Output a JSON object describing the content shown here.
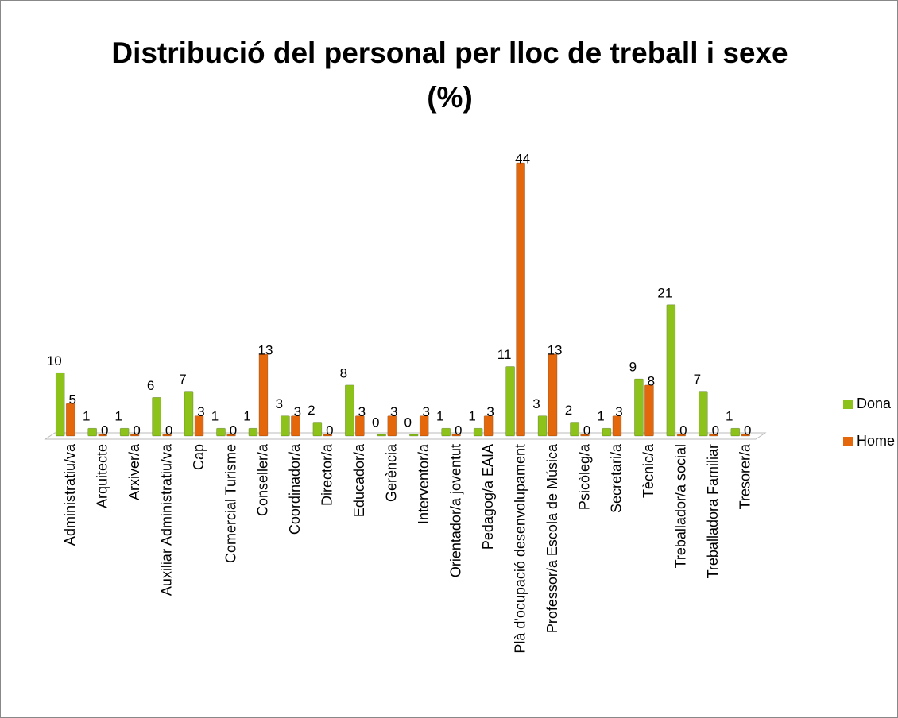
{
  "chart_data": {
    "type": "bar",
    "title": "Distribució del personal per lloc de treball i sexe (%)",
    "categories": [
      "Administratiu/va",
      "Arquitecte",
      "Arxiver/a",
      "Auxiliar Administratiu/va",
      "Cap",
      "Comercial Turisme",
      "Conseller/a",
      "Coordinador/a",
      "Director/a",
      "Educador/a",
      "Gerència",
      "Interventor/a",
      "Orientador/a joventut",
      "Pedagog/a EAIA",
      "Plà d'ocupació desenvolupament",
      "Professor/a Escola de Música",
      "Psicòleg/a",
      "Secretari/a",
      "Tècnic/a",
      "Treballador/a social",
      "Treballadora Familiar",
      "Tresorer/a"
    ],
    "series": [
      {
        "name": "Dona",
        "color": "#8cc21a",
        "values": [
          10,
          1,
          1,
          6,
          7,
          1,
          1,
          3,
          2,
          8,
          0,
          0,
          1,
          1,
          11,
          3,
          2,
          1,
          9,
          21,
          7,
          1
        ]
      },
      {
        "name": "Home",
        "color": "#e4670c",
        "values": [
          5,
          0,
          0,
          0,
          3,
          0,
          13,
          3,
          0,
          3,
          3,
          3,
          0,
          3,
          44,
          13,
          0,
          3,
          8,
          0,
          0,
          0
        ]
      }
    ],
    "legend": "right"
  }
}
